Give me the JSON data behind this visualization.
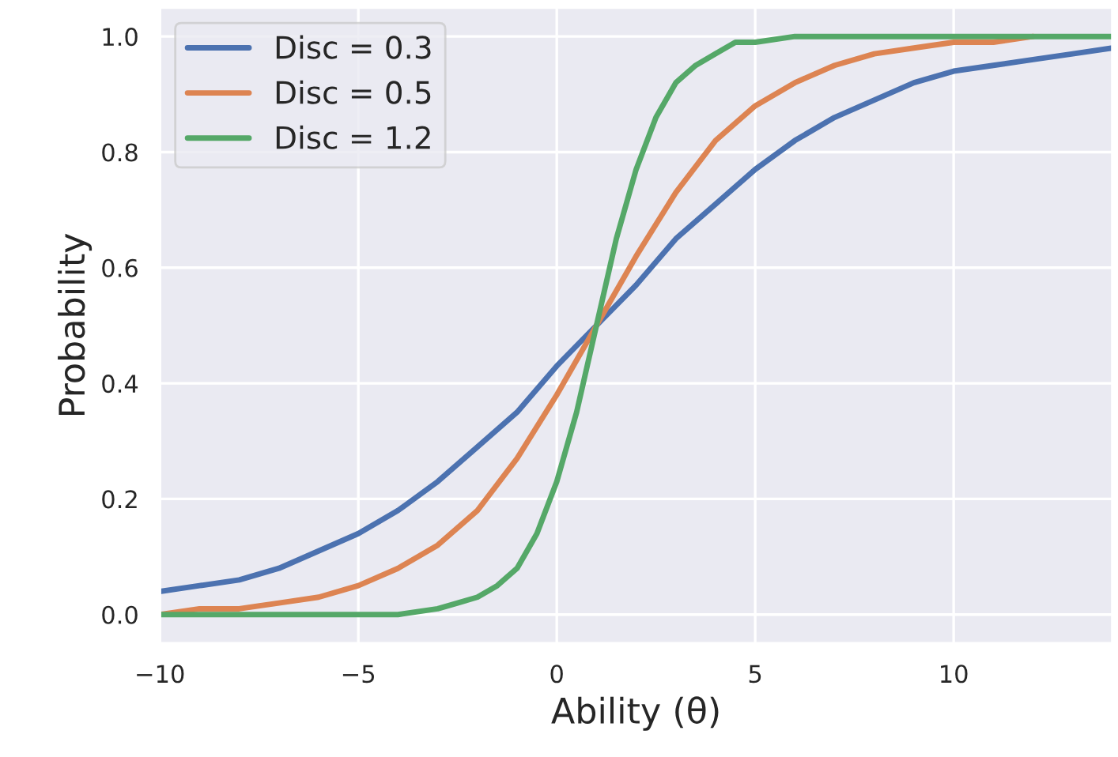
{
  "chart_data": {
    "type": "line",
    "xlabel": "Ability (θ)",
    "ylabel": "Probability",
    "xlim": [
      -10,
      14
    ],
    "ylim": [
      -0.05,
      1.05
    ],
    "xticks": [
      {
        "value": -10,
        "label": "−10"
      },
      {
        "value": -5,
        "label": "−5"
      },
      {
        "value": 0,
        "label": "0"
      },
      {
        "value": 5,
        "label": "5"
      },
      {
        "value": 10,
        "label": "10"
      }
    ],
    "yticks": [
      {
        "value": 0,
        "label": "0.0"
      },
      {
        "value": 0.2,
        "label": "0.2"
      },
      {
        "value": 0.4,
        "label": "0.4"
      },
      {
        "value": 0.6,
        "label": "0.6"
      },
      {
        "value": 0.8,
        "label": "0.8"
      },
      {
        "value": 1.0,
        "label": "1.0"
      }
    ],
    "grid": true,
    "legend": "top left",
    "line_style": "solid",
    "marker": "none",
    "series": [
      {
        "name": "Disc = 0.3",
        "color": "#4c72b0",
        "x": [
          -10,
          -9,
          -8,
          -7,
          -6,
          -5,
          -4,
          -3,
          -2,
          -1,
          0,
          1,
          2,
          3,
          4,
          5,
          6,
          7,
          8,
          9,
          10,
          11,
          12,
          13,
          14
        ],
        "values": [
          0.04,
          0.05,
          0.06,
          0.08,
          0.11,
          0.14,
          0.18,
          0.23,
          0.29,
          0.35,
          0.43,
          0.5,
          0.57,
          0.65,
          0.71,
          0.77,
          0.82,
          0.86,
          0.89,
          0.92,
          0.94,
          0.95,
          0.96,
          0.97,
          0.98
        ]
      },
      {
        "name": "Disc = 0.5",
        "color": "#dd8452",
        "x": [
          -10,
          -9,
          -8,
          -7,
          -6,
          -5,
          -4,
          -3,
          -2,
          -1,
          0,
          1,
          2,
          3,
          4,
          5,
          6,
          7,
          8,
          9,
          10,
          11,
          12
        ],
        "values": [
          0.0,
          0.01,
          0.01,
          0.02,
          0.03,
          0.05,
          0.08,
          0.12,
          0.18,
          0.27,
          0.38,
          0.5,
          0.62,
          0.73,
          0.82,
          0.88,
          0.92,
          0.95,
          0.97,
          0.98,
          0.99,
          0.99,
          1.0
        ]
      },
      {
        "name": "Disc = 1.2",
        "color": "#55a868",
        "x": [
          -10,
          -6,
          -4,
          -3,
          -2.5,
          -2,
          -1.5,
          -1,
          -0.5,
          0,
          0.5,
          1,
          1.5,
          2,
          2.5,
          3,
          3.5,
          4,
          4.5,
          5,
          6,
          8,
          14
        ],
        "values": [
          0.0,
          0.0,
          0.0,
          0.01,
          0.02,
          0.03,
          0.05,
          0.08,
          0.14,
          0.23,
          0.35,
          0.5,
          0.65,
          0.77,
          0.86,
          0.92,
          0.95,
          0.97,
          0.99,
          0.99,
          1.0,
          1.0,
          1.0
        ]
      }
    ]
  }
}
